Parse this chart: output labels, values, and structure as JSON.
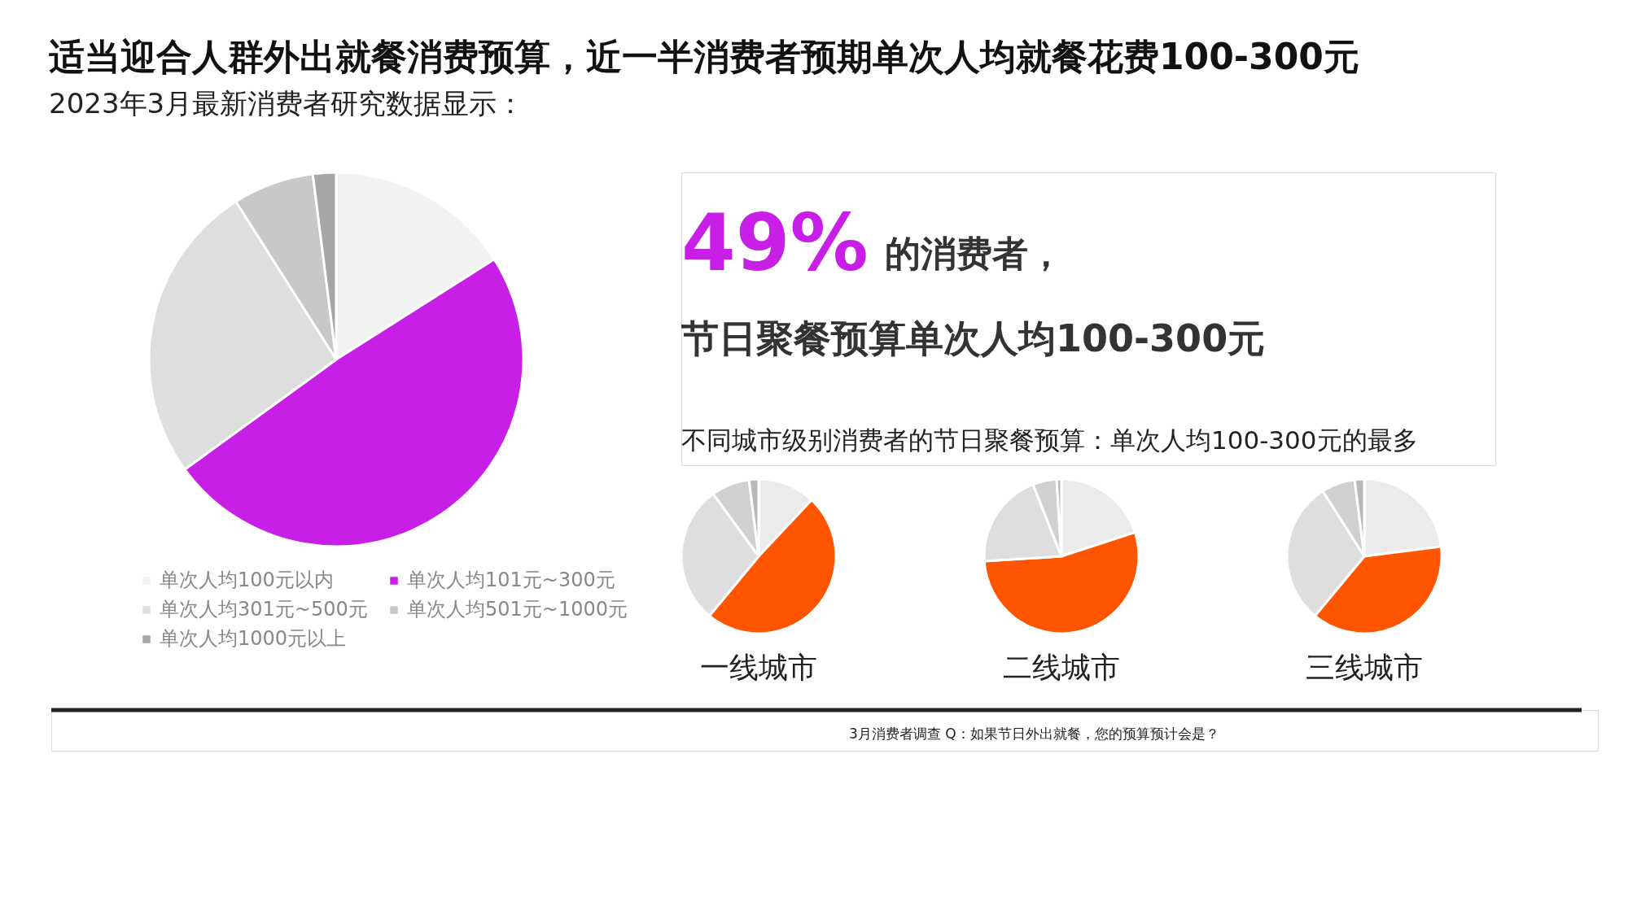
{
  "chart_data": [
    {
      "type": "pie",
      "title": "适当迎合人群外出就餐消费预算，近一半消费者预期单次人均就餐花费100-300元",
      "subtitle": "2023年3月最新消费者研究数据显示：",
      "categories": [
        "单次人均100元以内",
        "单次人均101元~300元",
        "单次人均301元~500元",
        "单次人均501元~1000元",
        "单次人均1000元以上"
      ],
      "values": [
        16,
        49,
        26,
        7,
        2
      ],
      "colors": [
        "#f2f2f2",
        "#c81fe6",
        "#dedede",
        "#c8c8c8",
        "#a6a6a6"
      ],
      "legend": "bottom",
      "annotations": [
        "49%",
        "的消费者，",
        "节日聚餐预算单次人均100-300元",
        "3月消费者调查  Q：如果节日外出就餐，您的预算预计会是？"
      ]
    },
    {
      "type": "pie",
      "title": "一线城市",
      "categories": [
        null,
        null,
        null,
        null,
        null
      ],
      "values": [
        12,
        49,
        29,
        8,
        2
      ],
      "colors": [
        "#ebebeb",
        "#ff5500",
        "#dedede",
        "#d0d0d0",
        "#b8b8b8"
      ],
      "annotations": [
        "不同城市级别消费者的节日聚餐预算：单次人均100-300元的最多"
      ]
    },
    {
      "type": "pie",
      "title": "二线城市",
      "categories": [
        null,
        null,
        null,
        null,
        null
      ],
      "values": [
        20,
        54,
        20,
        5,
        1
      ],
      "colors": [
        "#ebebeb",
        "#ff5500",
        "#dedede",
        "#d0d0d0",
        "#b8b8b8"
      ]
    },
    {
      "type": "pie",
      "title": "三线城市",
      "categories": [
        null,
        null,
        null,
        null,
        null
      ],
      "values": [
        23,
        38,
        30,
        7,
        2
      ],
      "colors": [
        "#ebebeb",
        "#ff5500",
        "#dedede",
        "#d0d0d0",
        "#b8b8b8"
      ]
    }
  ]
}
